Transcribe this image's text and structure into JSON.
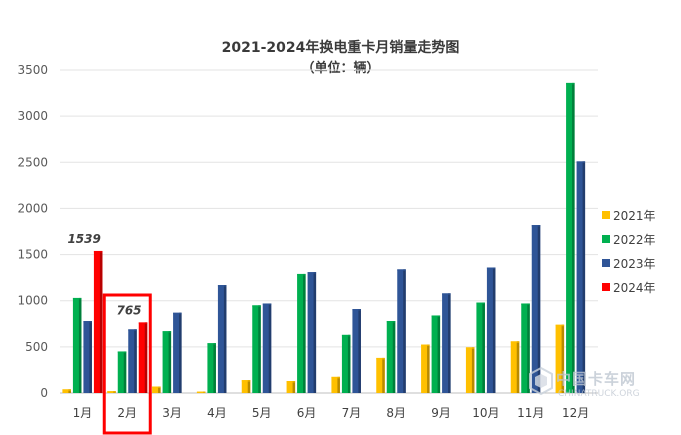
{
  "chart_data": {
    "type": "bar",
    "title": "2021-2024年换电重卡月销量走势图",
    "subtitle": "（单位：辆）",
    "categories": [
      "1月",
      "2月",
      "3月",
      "4月",
      "5月",
      "6月",
      "7月",
      "8月",
      "9月",
      "10月",
      "11月",
      "12月"
    ],
    "series": [
      {
        "name": "2021年",
        "color": "#ffc000",
        "values": [
          40,
          20,
          70,
          15,
          140,
          130,
          175,
          380,
          525,
          495,
          560,
          740
        ]
      },
      {
        "name": "2022年",
        "color": "#00b050",
        "values": [
          1030,
          450,
          670,
          540,
          950,
          1290,
          630,
          780,
          840,
          980,
          970,
          3360
        ]
      },
      {
        "name": "2023年",
        "color": "#2f5597",
        "values": [
          780,
          690,
          870,
          1170,
          970,
          1310,
          910,
          1340,
          1080,
          1360,
          1820,
          2510
        ]
      },
      {
        "name": "2024年",
        "color": "#ff0000",
        "values": [
          1539,
          765,
          null,
          null,
          null,
          null,
          null,
          null,
          null,
          null,
          null,
          null
        ]
      }
    ],
    "data_labels": [
      {
        "category": "1月",
        "series": "2024年",
        "text": "1539"
      },
      {
        "category": "2月",
        "series": "2024年",
        "text": "765"
      }
    ],
    "ylim": [
      0,
      3500
    ],
    "yticks": [
      0,
      500,
      1000,
      1500,
      2000,
      2500,
      3000,
      3500
    ],
    "grid": true,
    "legend_position": "right",
    "highlight": {
      "category": "2月",
      "color": "#ff0000"
    }
  },
  "watermark": {
    "name": "中国卡车网",
    "url": "CHINATRUCK.ORG"
  }
}
